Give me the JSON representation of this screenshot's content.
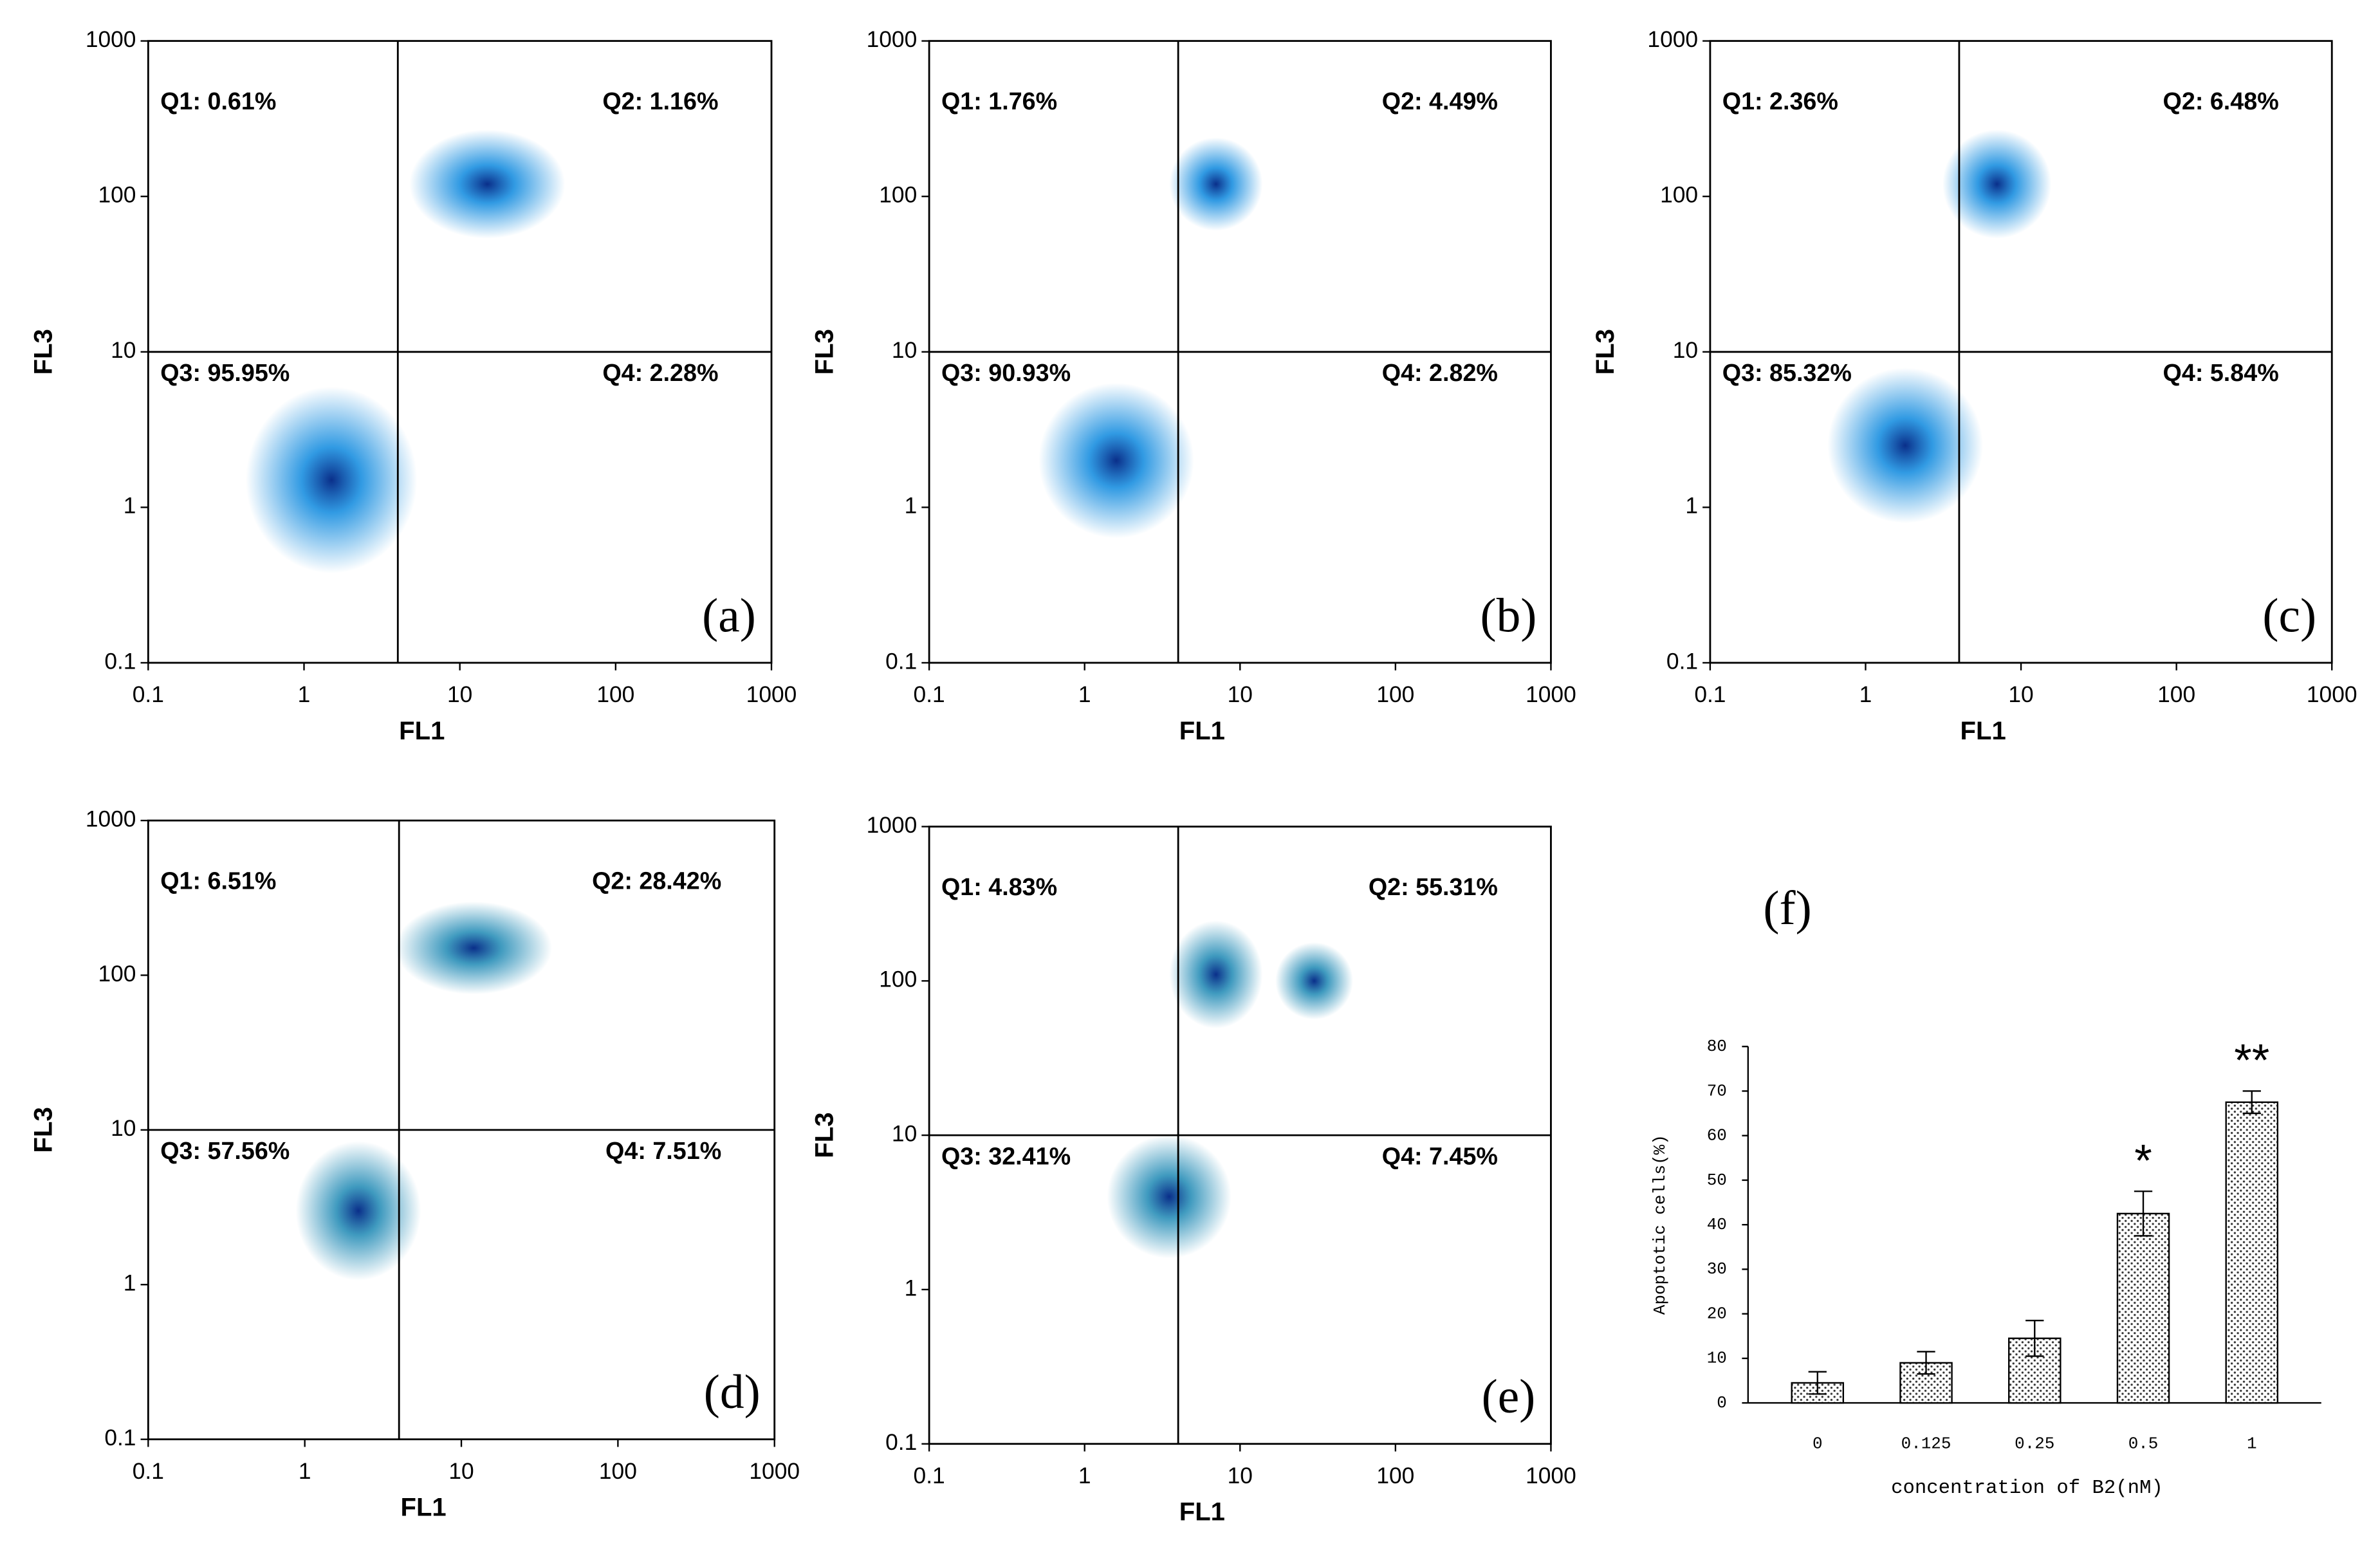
{
  "chart_data": [
    {
      "type": "flow",
      "label": "(a)",
      "xlabel": "FL1",
      "ylabel": "FL3",
      "log": true,
      "xlim": [
        0.1,
        1000
      ],
      "ylim": [
        0.1,
        1000
      ],
      "xticks": [
        0.1,
        1,
        10,
        100,
        1000
      ],
      "yticks": [
        0.1,
        1,
        10,
        100,
        1000
      ],
      "gate": [
        4,
        10
      ],
      "quadrants": [
        "Q1: 0.61%",
        "Q2: 1.16%",
        "Q3: 95.95%",
        "Q4: 2.28%"
      ],
      "clusters": [
        {
          "x": 1.5,
          "y": 1.5,
          "sx": 0.55,
          "sy": 0.6
        },
        {
          "x": 15,
          "y": 120,
          "sx": 0.5,
          "sy": 0.35
        }
      ],
      "color": "#1a8fe0"
    },
    {
      "type": "flow",
      "label": "(b)",
      "xlabel": "FL1",
      "ylabel": "FL3",
      "log": true,
      "xlim": [
        0.1,
        1000
      ],
      "ylim": [
        0.1,
        1000
      ],
      "xticks": [
        0.1,
        1,
        10,
        100,
        1000
      ],
      "yticks": [
        0.1,
        1,
        10,
        100,
        1000
      ],
      "gate": [
        4,
        10
      ],
      "quadrants": [
        "Q1: 1.76%",
        "Q2: 4.49%",
        "Q3: 90.93%",
        "Q4: 2.82%"
      ],
      "clusters": [
        {
          "x": 1.6,
          "y": 2,
          "sx": 0.5,
          "sy": 0.5
        },
        {
          "x": 7,
          "y": 120,
          "sx": 0.3,
          "sy": 0.3
        }
      ],
      "color": "#1a8fe0"
    },
    {
      "type": "flow",
      "label": "(c)",
      "xlabel": "FL1",
      "ylabel": "FL3",
      "log": true,
      "xlim": [
        0.1,
        1000
      ],
      "ylim": [
        0.1,
        1000
      ],
      "xticks": [
        0.1,
        1,
        10,
        100,
        1000
      ],
      "yticks": [
        0.1,
        1,
        10,
        100,
        1000
      ],
      "gate": [
        4,
        10
      ],
      "quadrants": [
        "Q1: 2.36%",
        "Q2: 6.48%",
        "Q3: 85.32%",
        "Q4: 5.84%"
      ],
      "clusters": [
        {
          "x": 1.8,
          "y": 2.5,
          "sx": 0.5,
          "sy": 0.5
        },
        {
          "x": 7,
          "y": 120,
          "sx": 0.35,
          "sy": 0.35
        }
      ],
      "color": "#1a8fe0"
    },
    {
      "type": "flow",
      "label": "(d)",
      "xlabel": "FL1",
      "ylabel": "FL3",
      "log": true,
      "xlim": [
        0.1,
        1000
      ],
      "ylim": [
        0.1,
        1000
      ],
      "xticks": [
        0.1,
        1,
        10,
        100,
        1000
      ],
      "yticks": [
        0.1,
        1,
        10,
        100,
        1000
      ],
      "gate": [
        4,
        10
      ],
      "quadrants": [
        "Q1: 6.51%",
        "Q2: 28.42%",
        "Q3: 57.56%",
        "Q4: 7.51%"
      ],
      "clusters": [
        {
          "x": 2.2,
          "y": 3,
          "sx": 0.4,
          "sy": 0.45
        },
        {
          "x": 12,
          "y": 150,
          "sx": 0.5,
          "sy": 0.3
        }
      ],
      "color": "#2a8fb8"
    },
    {
      "type": "flow",
      "label": "(e)",
      "xlabel": "FL1",
      "ylabel": "FL3",
      "log": true,
      "xlim": [
        0.1,
        1000
      ],
      "ylim": [
        0.1,
        1000
      ],
      "xticks": [
        0.1,
        1,
        10,
        100,
        1000
      ],
      "yticks": [
        0.1,
        1,
        10,
        100,
        1000
      ],
      "gate": [
        4,
        10
      ],
      "quadrants": [
        "Q1: 4.83%",
        "Q2: 55.31%",
        "Q3: 32.41%",
        "Q4: 7.45%"
      ],
      "clusters": [
        {
          "x": 3.5,
          "y": 4,
          "sx": 0.4,
          "sy": 0.4
        },
        {
          "x": 7,
          "y": 110,
          "sx": 0.3,
          "sy": 0.35
        },
        {
          "x": 30,
          "y": 100,
          "sx": 0.25,
          "sy": 0.25
        }
      ],
      "color": "#2a8fb8"
    },
    {
      "type": "bar",
      "label": "(f)",
      "xlabel": "concentration of B2(nM)",
      "ylabel": "Apoptotic cells(%)",
      "categories": [
        "0",
        "0.125",
        "0.25",
        "0.5",
        "1"
      ],
      "values": [
        4.5,
        9,
        14.5,
        42.5,
        67.5
      ],
      "errors": [
        2.5,
        2.5,
        4,
        5,
        2.5
      ],
      "annotations": [
        null,
        null,
        null,
        "*",
        "**"
      ],
      "ylim": [
        0,
        80
      ],
      "yticks": [
        0,
        10,
        20,
        30,
        40,
        50,
        60,
        70,
        80
      ]
    }
  ]
}
